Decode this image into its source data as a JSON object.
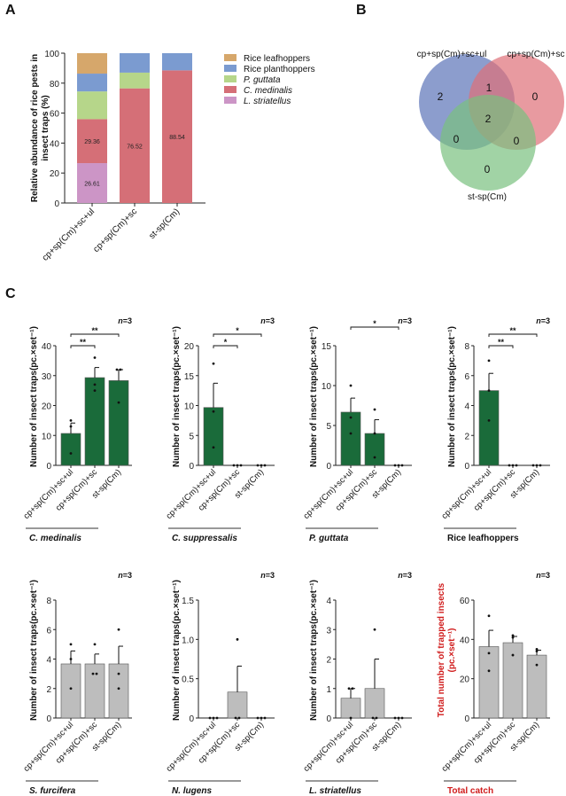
{
  "panel_labels": {
    "a": "A",
    "b": "B",
    "c": "C"
  },
  "colors": {
    "rice_leafhoppers": "#d6a76b",
    "rice_planthoppers": "#7b9bd0",
    "p_guttata": "#b6d68a",
    "c_medinalis": "#d56f77",
    "l_striatellus": "#cc95c6",
    "green_bar": "#1a6b3a",
    "grey_bar": "#bdbdbd",
    "venn_blue": "#5b73b8",
    "venn_red": "#de6f78",
    "venn_green": "#79c07f",
    "total_label": "#d01c1c"
  },
  "chart_data": [
    {
      "id": "A",
      "type": "bar",
      "stacked": true,
      "ylabel": "Relative abundance of rice pests in insect traps (%)",
      "ylabel_lines": [
        "Relative abundance of rice pests in",
        "insect traps (%)"
      ],
      "ylim": [
        0,
        100
      ],
      "yticks": [
        0,
        20,
        40,
        60,
        80,
        100
      ],
      "categories": [
        "cp+sp(Cm)+sc+ul",
        "cp+sp(Cm)+sc",
        "st-sp(Cm)"
      ],
      "legend_position": "right",
      "series": [
        {
          "name": "L. striatellus",
          "italic": true,
          "color_key": "l_striatellus",
          "values": [
            26.61,
            0,
            0
          ],
          "labels": [
            "26.61",
            "",
            ""
          ]
        },
        {
          "name": "C. medinalis",
          "italic": true,
          "color_key": "c_medinalis",
          "values": [
            29.36,
            76.52,
            88.54
          ],
          "labels": [
            "29.36",
            "76.52",
            "88.54"
          ]
        },
        {
          "name": "P. guttata",
          "italic": true,
          "color_key": "p_guttata",
          "values": [
            18.5,
            10.5,
            0
          ],
          "labels": [
            "",
            "",
            ""
          ]
        },
        {
          "name": "Rice planthoppers",
          "italic": false,
          "color_key": "rice_planthoppers",
          "values": [
            11.9,
            12.98,
            11.46
          ],
          "labels": [
            "",
            "",
            ""
          ]
        },
        {
          "name": "Rice leafhoppers",
          "italic": false,
          "color_key": "rice_leafhoppers",
          "values": [
            13.63,
            0,
            0
          ],
          "labels": [
            "",
            "",
            ""
          ]
        }
      ],
      "legend_order": [
        "Rice leafhoppers",
        "Rice planthoppers",
        "P. guttata",
        "C. medinalis",
        "L. striatellus"
      ]
    },
    {
      "id": "B",
      "type": "venn",
      "sets": [
        "cp+sp(Cm)+sc+ul",
        "cp+sp(Cm)+sc",
        "st-sp(Cm)"
      ],
      "regions": {
        "only_A": 2,
        "only_B": 0,
        "only_C": 0,
        "A_B": 1,
        "A_C": 0,
        "B_C": 0,
        "A_B_C": 2
      }
    },
    {
      "id": "C1",
      "type": "bar",
      "title": "C. medinalis",
      "title_italic": true,
      "n_label": "n=3",
      "ylabel": "Number of insect traps(pc.×set⁻¹)",
      "ylim": [
        0,
        40
      ],
      "yticks": [
        "0",
        "10",
        "20",
        "30",
        "40"
      ],
      "ytick_values": [
        0,
        10,
        20,
        30,
        40
      ],
      "categories": [
        "cp+sp(Cm)+sc+ul",
        "cp+sp(Cm)+sc",
        "st-sp(Cm)"
      ],
      "color_key": "green_bar",
      "values": [
        10.67,
        29.33,
        28.33
      ],
      "sem": [
        3.48,
        3.38,
        3.67
      ],
      "points": [
        [
          4,
          13,
          15
        ],
        [
          25,
          27,
          36
        ],
        [
          21,
          32,
          32
        ]
      ],
      "sig": [
        {
          "from": 0,
          "to": 1,
          "label": "**"
        },
        {
          "from": 0,
          "to": 2,
          "label": "**"
        }
      ]
    },
    {
      "id": "C2",
      "type": "bar",
      "title": "C. suppressalis",
      "title_italic": true,
      "n_label": "n=3",
      "ylabel": "Number of insect traps(pc.×set⁻¹)",
      "ylim": [
        0,
        20
      ],
      "yticks": [
        "0",
        "5",
        "10",
        "15",
        "20"
      ],
      "ytick_values": [
        0,
        5,
        10,
        15,
        20
      ],
      "categories": [
        "cp+sp(Cm)+sc+ul",
        "cp+sp(Cm)+sc",
        "st-sp(Cm)"
      ],
      "color_key": "green_bar",
      "values": [
        9.67,
        0,
        0
      ],
      "sem": [
        4.06,
        0,
        0
      ],
      "points": [
        [
          3,
          9,
          17
        ],
        [
          0,
          0,
          0
        ],
        [
          0,
          0,
          0
        ]
      ],
      "sig": [
        {
          "from": 0,
          "to": 1,
          "label": "*"
        },
        {
          "from": 0,
          "to": 2,
          "label": "*"
        }
      ]
    },
    {
      "id": "C3",
      "type": "bar",
      "title": "P. guttata",
      "title_italic": true,
      "n_label": "n=3",
      "ylabel": "Number of insect traps(pc.×set⁻¹)",
      "ylim": [
        0,
        15
      ],
      "yticks": [
        "0",
        "5",
        "10",
        "15"
      ],
      "ytick_values": [
        0,
        5,
        10,
        15
      ],
      "categories": [
        "cp+sp(Cm)+sc+ul",
        "cp+sp(Cm)+sc",
        "st-sp(Cm)"
      ],
      "color_key": "green_bar",
      "values": [
        6.67,
        4,
        0
      ],
      "sem": [
        1.76,
        1.73,
        0
      ],
      "points": [
        [
          4,
          6,
          10
        ],
        [
          1,
          4,
          7
        ],
        [
          0,
          0,
          0
        ]
      ],
      "sig": [
        {
          "from": 0,
          "to": 2,
          "label": "*"
        }
      ]
    },
    {
      "id": "C4",
      "type": "bar",
      "title": "Rice leafhoppers",
      "title_italic": false,
      "n_label": "n=3",
      "ylabel": "Number of insect traps(pc.×set⁻¹)",
      "ylim": [
        0,
        8
      ],
      "yticks": [
        "0",
        "2",
        "4",
        "6",
        "8"
      ],
      "ytick_values": [
        0,
        2,
        4,
        6,
        8
      ],
      "categories": [
        "cp+sp(Cm)+sc+ul",
        "cp+sp(Cm)+sc",
        "st-sp(Cm)"
      ],
      "color_key": "green_bar",
      "values": [
        5,
        0,
        0
      ],
      "sem": [
        1.15,
        0,
        0
      ],
      "points": [
        [
          3,
          5,
          7
        ],
        [
          0,
          0,
          0
        ],
        [
          0,
          0,
          0
        ]
      ],
      "sig": [
        {
          "from": 0,
          "to": 1,
          "label": "**"
        },
        {
          "from": 0,
          "to": 2,
          "label": "**"
        }
      ]
    },
    {
      "id": "C5",
      "type": "bar",
      "title": "S. furcifera",
      "title_italic": true,
      "n_label": "n=3",
      "ylabel": "Number of insect traps(pc.×set⁻¹)",
      "ylim": [
        0,
        8
      ],
      "yticks": [
        "0",
        "2",
        "4",
        "6",
        "8"
      ],
      "ytick_values": [
        0,
        2,
        4,
        6,
        8
      ],
      "categories": [
        "cp+sp(Cm)+sc+ul",
        "cp+sp(Cm)+sc",
        "st-sp(Cm)"
      ],
      "color_key": "grey_bar",
      "values": [
        3.67,
        3.67,
        3.67
      ],
      "sem": [
        0.88,
        0.67,
        1.2
      ],
      "points": [
        [
          2,
          4,
          5
        ],
        [
          3,
          3,
          5
        ],
        [
          2,
          3,
          6
        ]
      ],
      "sig": []
    },
    {
      "id": "C6",
      "type": "bar",
      "title": "N. lugens",
      "title_italic": true,
      "n_label": "n=3",
      "ylabel": "Number of insect traps(pc.×set⁻¹)",
      "ylim": [
        0,
        1.5
      ],
      "yticks": [
        "0",
        "0.5",
        "1.0",
        "1.5"
      ],
      "ytick_values": [
        0,
        0.5,
        1.0,
        1.5
      ],
      "categories": [
        "cp+sp(Cm)+sc+ul",
        "cp+sp(Cm)+sc",
        "st-sp(Cm)"
      ],
      "color_key": "grey_bar",
      "values": [
        0,
        0.33,
        0
      ],
      "sem": [
        0,
        0.33,
        0
      ],
      "points": [
        [
          0,
          0,
          0
        ],
        [
          0,
          0,
          1
        ],
        [
          0,
          0,
          0
        ]
      ],
      "sig": []
    },
    {
      "id": "C7",
      "type": "bar",
      "title": "L. striatellus",
      "title_italic": true,
      "n_label": "n=3",
      "ylabel": "Number of insect traps(pc.×set⁻¹)",
      "ylim": [
        0,
        4
      ],
      "yticks": [
        "0",
        "1",
        "2",
        "3",
        "4"
      ],
      "ytick_values": [
        0,
        1,
        2,
        3,
        4
      ],
      "categories": [
        "cp+sp(Cm)+sc+ul",
        "cp+sp(Cm)+sc",
        "st-sp(Cm)"
      ],
      "color_key": "grey_bar",
      "values": [
        0.67,
        1,
        0
      ],
      "sem": [
        0.33,
        1,
        0
      ],
      "points": [
        [
          0,
          1,
          1
        ],
        [
          0,
          0,
          3
        ],
        [
          0,
          0,
          0
        ]
      ],
      "sig": []
    },
    {
      "id": "C8",
      "type": "bar",
      "title": "Total catch",
      "title_italic": false,
      "title_red": true,
      "n_label": "n=3",
      "ylabel": "Total number of trapped insects (pc.×set⁻¹)",
      "ylabel_lines": [
        "Total number of trapped insects",
        "(pc.×set⁻¹)"
      ],
      "ylabel_red": true,
      "ylim": [
        0,
        60
      ],
      "yticks": [
        "0",
        "20",
        "40",
        "60"
      ],
      "ytick_values": [
        0,
        20,
        40,
        60
      ],
      "categories": [
        "cp+sp(Cm)+sc+ul",
        "cp+sp(Cm)+sc",
        "st-sp(Cm)"
      ],
      "color_key": "grey_bar",
      "values": [
        36.33,
        38.33,
        32
      ],
      "sem": [
        8.29,
        3.18,
        2.52
      ],
      "points": [
        [
          24,
          33,
          52
        ],
        [
          32,
          41,
          42
        ],
        [
          27,
          34,
          35
        ]
      ],
      "sig": []
    }
  ]
}
